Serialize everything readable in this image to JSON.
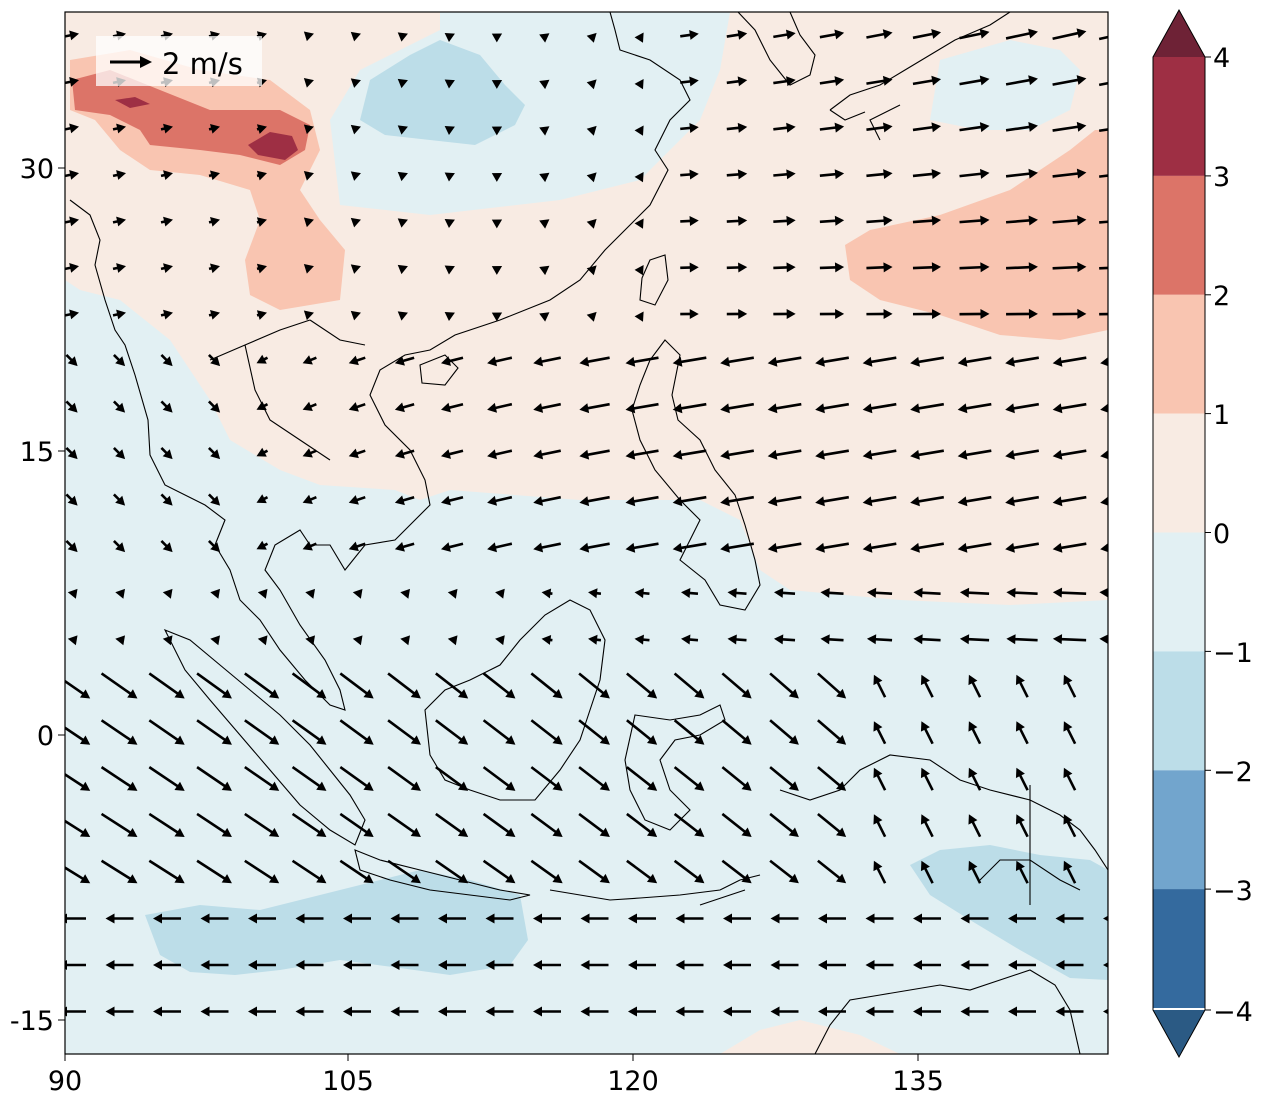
{
  "map": {
    "lon_ticks": [
      "90",
      "105",
      "120",
      "135"
    ],
    "lat_ticks": [
      "30",
      "15",
      "0",
      "-15"
    ],
    "lon_range": [
      90,
      145
    ],
    "lat_range": [
      -17,
      38
    ]
  },
  "quiver_key": {
    "label": "2 m/s",
    "value": 2,
    "unit": "m/s"
  },
  "colorbar": {
    "ticks": [
      "−4",
      "−3",
      "−2",
      "−1",
      "0",
      "1",
      "2",
      "3",
      "4"
    ],
    "extend": "both",
    "colors": [
      "#2b5a84",
      "#346a9e",
      "#72a5cd",
      "#bcdde8",
      "#e2f0f3",
      "#f8ebe3",
      "#f9c5b1",
      "#dc7468",
      "#9e2f44",
      "#6e2236"
    ]
  }
}
